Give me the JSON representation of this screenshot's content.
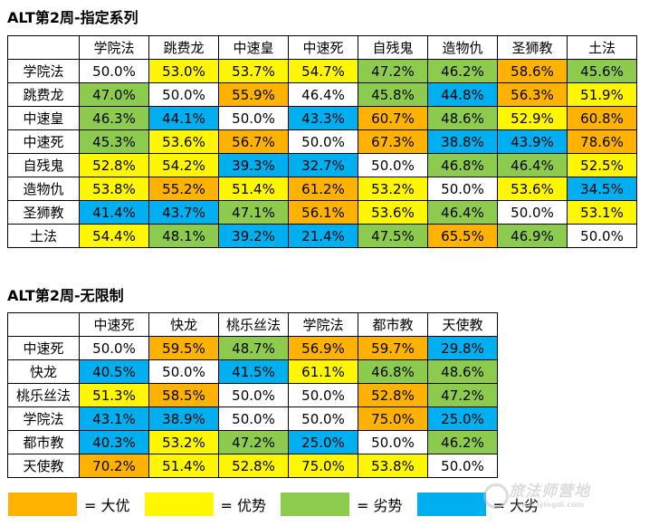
{
  "colors": {
    "big_adv": "#FFB200",
    "adv": "#FFF700",
    "disadv": "#8DCB4F",
    "big_disadv": "#00AFEF",
    "even": "#FFFFFF"
  },
  "chart_data": [
    {
      "type": "table",
      "title": "ALT第2周-指定系列",
      "columns": [
        "学院法",
        "跳费龙",
        "中速皇",
        "中速死",
        "自残鬼",
        "造物仇",
        "圣狮教",
        "土法"
      ],
      "rows": [
        {
          "label": "学院法",
          "values": [
            "50.0%",
            "53.0%",
            "53.7%",
            "54.7%",
            "47.2%",
            "46.2%",
            "58.6%",
            "45.6%"
          ],
          "colors": [
            "even",
            "adv",
            "adv",
            "adv",
            "disadv",
            "disadv",
            "big_adv",
            "disadv"
          ]
        },
        {
          "label": "跳费龙",
          "values": [
            "47.0%",
            "50.0%",
            "55.9%",
            "46.4%",
            "45.8%",
            "44.8%",
            "56.3%",
            "51.9%"
          ],
          "colors": [
            "disadv",
            "even",
            "big_adv",
            "even",
            "disadv",
            "big_disadv",
            "big_adv",
            "adv"
          ]
        },
        {
          "label": "中速皇",
          "values": [
            "46.3%",
            "44.1%",
            "50.0%",
            "43.3%",
            "60.7%",
            "48.6%",
            "52.9%",
            "60.8%"
          ],
          "colors": [
            "disadv",
            "big_disadv",
            "even",
            "big_disadv",
            "big_adv",
            "disadv",
            "adv",
            "big_adv"
          ]
        },
        {
          "label": "中速死",
          "values": [
            "45.3%",
            "53.6%",
            "56.7%",
            "50.0%",
            "67.3%",
            "38.8%",
            "43.9%",
            "78.6%"
          ],
          "colors": [
            "disadv",
            "adv",
            "big_adv",
            "even",
            "big_adv",
            "big_disadv",
            "big_disadv",
            "big_adv"
          ]
        },
        {
          "label": "自残鬼",
          "values": [
            "52.8%",
            "54.2%",
            "39.3%",
            "32.7%",
            "50.0%",
            "46.8%",
            "46.4%",
            "52.5%"
          ],
          "colors": [
            "adv",
            "adv",
            "big_disadv",
            "big_disadv",
            "even",
            "disadv",
            "disadv",
            "adv"
          ]
        },
        {
          "label": "造物仇",
          "values": [
            "53.8%",
            "55.2%",
            "51.4%",
            "61.2%",
            "53.2%",
            "50.0%",
            "53.6%",
            "34.5%"
          ],
          "colors": [
            "adv",
            "big_adv",
            "adv",
            "big_adv",
            "adv",
            "even",
            "adv",
            "big_disadv"
          ]
        },
        {
          "label": "圣狮教",
          "values": [
            "41.4%",
            "43.7%",
            "47.1%",
            "56.1%",
            "53.6%",
            "46.4%",
            "50.0%",
            "53.1%"
          ],
          "colors": [
            "big_disadv",
            "big_disadv",
            "disadv",
            "big_adv",
            "adv",
            "disadv",
            "even",
            "adv"
          ]
        },
        {
          "label": "土法",
          "values": [
            "54.4%",
            "48.1%",
            "39.2%",
            "21.4%",
            "47.5%",
            "65.5%",
            "46.9%",
            "50.0%"
          ],
          "colors": [
            "adv",
            "disadv",
            "big_disadv",
            "big_disadv",
            "disadv",
            "big_adv",
            "disadv",
            "even"
          ]
        }
      ]
    },
    {
      "type": "table",
      "title": "ALT第2周-无限制",
      "columns": [
        "中速死",
        "快龙",
        "桃乐丝法",
        "学院法",
        "都市教",
        "天使教"
      ],
      "rows": [
        {
          "label": "中速死",
          "values": [
            "50.0%",
            "59.5%",
            "48.7%",
            "56.9%",
            "59.7%",
            "29.8%"
          ],
          "colors": [
            "even",
            "big_adv",
            "disadv",
            "big_adv",
            "big_adv",
            "big_disadv"
          ]
        },
        {
          "label": "快龙",
          "values": [
            "40.5%",
            "50.0%",
            "41.5%",
            "61.1%",
            "46.8%",
            "48.6%"
          ],
          "colors": [
            "big_disadv",
            "even",
            "big_disadv",
            "adv",
            "disadv",
            "disadv"
          ]
        },
        {
          "label": "桃乐丝法",
          "values": [
            "51.3%",
            "58.5%",
            "50.0%",
            "50.0%",
            "52.8%",
            "47.2%"
          ],
          "colors": [
            "adv",
            "big_adv",
            "even",
            "even",
            "big_adv",
            "disadv"
          ]
        },
        {
          "label": "学院法",
          "values": [
            "43.1%",
            "38.9%",
            "50.0%",
            "50.0%",
            "75.0%",
            "25.0%"
          ],
          "colors": [
            "big_disadv",
            "big_disadv",
            "even",
            "even",
            "big_adv",
            "big_disadv"
          ]
        },
        {
          "label": "都市教",
          "values": [
            "40.3%",
            "53.2%",
            "47.2%",
            "25.0%",
            "50.0%",
            "46.2%"
          ],
          "colors": [
            "big_disadv",
            "adv",
            "disadv",
            "big_disadv",
            "even",
            "disadv"
          ]
        },
        {
          "label": "天使教",
          "values": [
            "70.2%",
            "51.4%",
            "52.8%",
            "75.0%",
            "53.8%",
            "50.0%"
          ],
          "colors": [
            "big_adv",
            "adv",
            "adv",
            "adv",
            "adv",
            "even"
          ]
        }
      ]
    }
  ],
  "legend": [
    {
      "color_key": "big_adv",
      "label": "= 大优"
    },
    {
      "color_key": "adv",
      "label": "= 优势"
    },
    {
      "color_key": "disadv",
      "label": "= 劣势"
    },
    {
      "color_key": "big_disadv",
      "label": "= 大劣"
    }
  ],
  "watermark": {
    "text": "旅法师营地",
    "sub": "www.iyingdi.com"
  }
}
